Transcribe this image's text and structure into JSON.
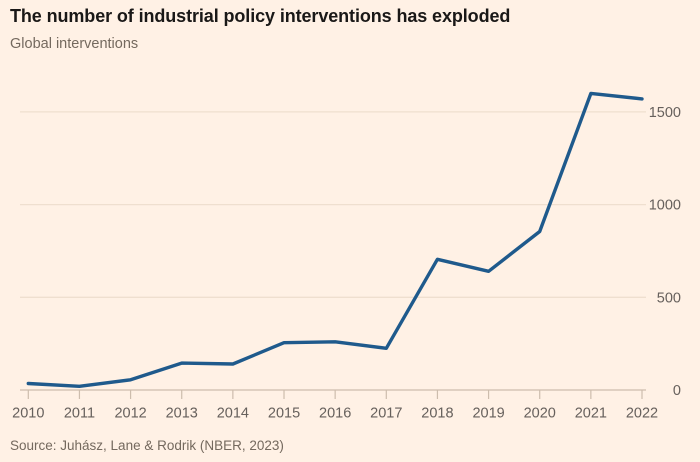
{
  "header": {
    "title": "The number of industrial policy interventions has exploded",
    "subtitle": "Global interventions"
  },
  "source": {
    "label": "Source: Juhász, Lane & Rodrik (NBER, 2023)"
  },
  "chart_data": {
    "type": "line",
    "title": "The number of industrial policy interventions has exploded",
    "subtitle": "Global interventions",
    "x": [
      2010,
      2011,
      2012,
      2013,
      2014,
      2015,
      2016,
      2017,
      2018,
      2019,
      2020,
      2021,
      2022
    ],
    "series": [
      {
        "name": "Global interventions",
        "values": [
          35,
          20,
          55,
          145,
          140,
          255,
          260,
          225,
          705,
          640,
          855,
          1600,
          1570
        ]
      }
    ],
    "xlabel": "",
    "ylabel": "",
    "ylim": [
      0,
      1650
    ],
    "yticks": [
      0,
      500,
      1000,
      1500
    ],
    "ytick_side": "right",
    "grid": "horizontal",
    "legend": "none",
    "colors": {
      "background": "#FFF1E5",
      "line": "#1F5A8C",
      "grid": "#EFDFCF",
      "axis_line": "#CDBDAD",
      "tick_label": "#66605C",
      "title_text": "#1A1817",
      "subtitle_text": "#74695E",
      "source_text": "#74695E"
    }
  }
}
